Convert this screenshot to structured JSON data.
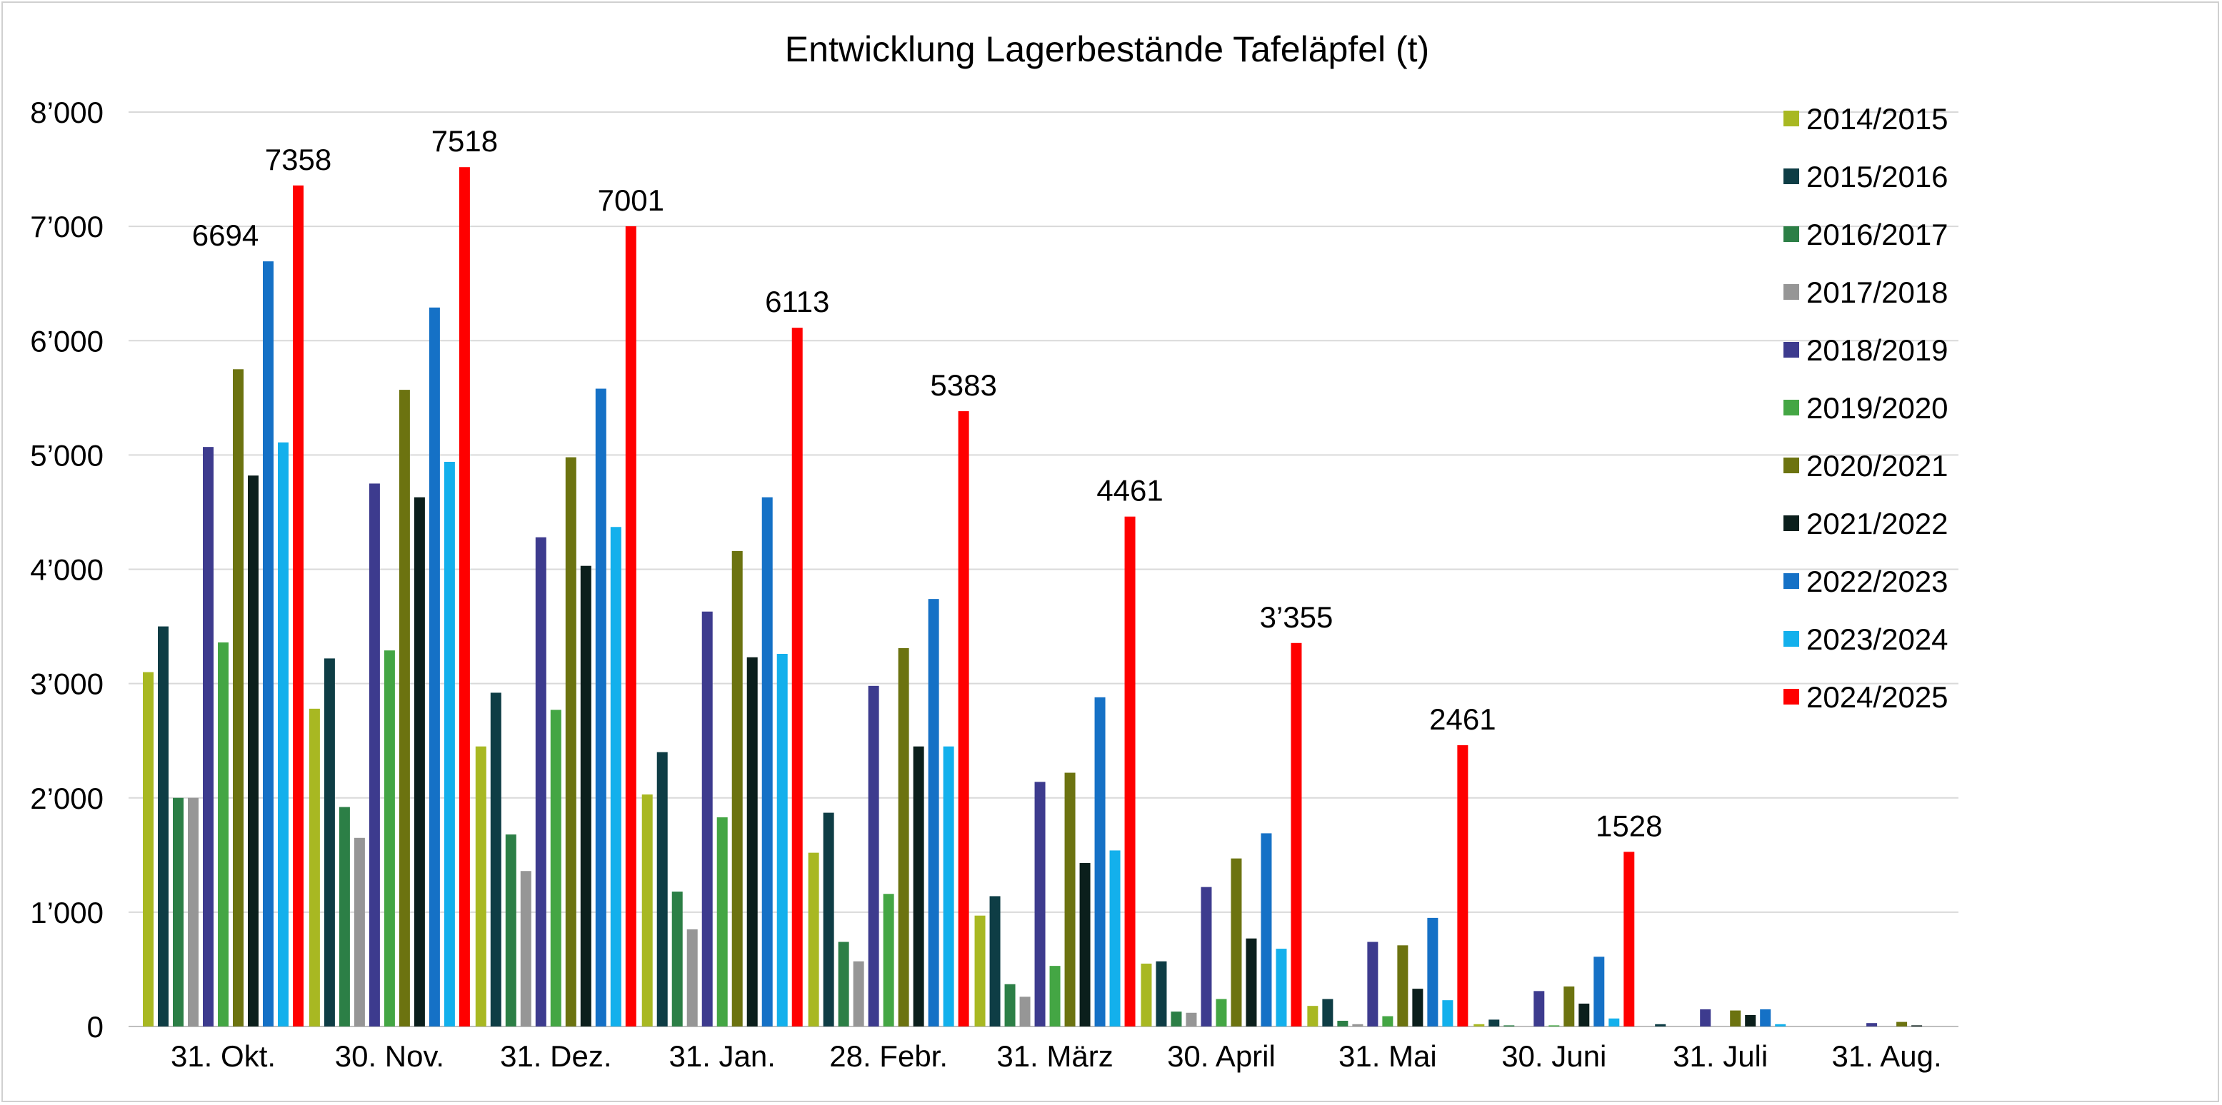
{
  "chart_data": {
    "type": "bar",
    "title": "Entwicklung Lagerbestände Tafeläpfel (t)",
    "xlabel": "",
    "ylabel": "",
    "ylim": [
      0,
      8000
    ],
    "y_ticks": [
      "0",
      "1’000",
      "2’000",
      "3’000",
      "4’000",
      "5’000",
      "6’000",
      "7’000",
      "8’000"
    ],
    "grid": true,
    "legend_position": "right",
    "categories": [
      "31. Okt.",
      "30. Nov.",
      "31. Dez.",
      "31. Jan.",
      "28. Febr.",
      "31. März",
      "30. April",
      "31. Mai",
      "30. Juni",
      "31. Juli",
      "31. Aug."
    ],
    "series": [
      {
        "name": "2014/2015",
        "color": "#a8b822",
        "values": [
          3100,
          2780,
          2450,
          2030,
          1520,
          970,
          550,
          180,
          20,
          0,
          0
        ]
      },
      {
        "name": "2015/2016",
        "color": "#0e3d45",
        "values": [
          3500,
          3220,
          2920,
          2400,
          1870,
          1140,
          570,
          240,
          60,
          20,
          0
        ]
      },
      {
        "name": "2016/2017",
        "color": "#2c7f46",
        "values": [
          2000,
          1920,
          1680,
          1180,
          740,
          370,
          130,
          50,
          10,
          0,
          0
        ]
      },
      {
        "name": "2017/2018",
        "color": "#969696",
        "values": [
          2000,
          1650,
          1360,
          850,
          570,
          260,
          120,
          20,
          0,
          0,
          0
        ]
      },
      {
        "name": "2018/2019",
        "color": "#3d3b8e",
        "values": [
          5070,
          4750,
          4280,
          3630,
          2980,
          2140,
          1220,
          740,
          310,
          150,
          30
        ]
      },
      {
        "name": "2019/2020",
        "color": "#44a644",
        "values": [
          3360,
          3290,
          2770,
          1830,
          1160,
          530,
          240,
          90,
          10,
          0,
          0
        ]
      },
      {
        "name": "2020/2021",
        "color": "#6c7310",
        "values": [
          5750,
          5570,
          4980,
          4160,
          3310,
          2220,
          1470,
          710,
          350,
          140,
          40
        ]
      },
      {
        "name": "2021/2022",
        "color": "#0b1f1c",
        "values": [
          4820,
          4630,
          4030,
          3230,
          2450,
          1430,
          770,
          330,
          200,
          100,
          10
        ]
      },
      {
        "name": "2022/2023",
        "color": "#1571c6",
        "values": [
          6694,
          6290,
          5580,
          4630,
          3740,
          2880,
          1690,
          950,
          610,
          150,
          0
        ]
      },
      {
        "name": "2023/2024",
        "color": "#13b0ec",
        "values": [
          5110,
          4940,
          4370,
          3260,
          2450,
          1540,
          680,
          230,
          70,
          20,
          0
        ]
      },
      {
        "name": "2024/2025",
        "color": "#ff0000",
        "values": [
          7358,
          7518,
          7001,
          6113,
          5383,
          4461,
          3355,
          2461,
          1528,
          null,
          null
        ]
      }
    ],
    "data_labels": [
      {
        "category": "31. Okt.",
        "series": "2022/2023",
        "text": "6694"
      },
      {
        "category": "31. Okt.",
        "series": "2024/2025",
        "text": "7358"
      },
      {
        "category": "30. Nov.",
        "series": "2024/2025",
        "text": "7518"
      },
      {
        "category": "31. Dez.",
        "series": "2024/2025",
        "text": "7001"
      },
      {
        "category": "31. Jan.",
        "series": "2024/2025",
        "text": "6113"
      },
      {
        "category": "28. Febr.",
        "series": "2024/2025",
        "text": "5383"
      },
      {
        "category": "31. März",
        "series": "2024/2025",
        "text": "4461"
      },
      {
        "category": "30. April",
        "series": "2024/2025",
        "text": "3’355"
      },
      {
        "category": "31. Mai",
        "series": "2024/2025",
        "text": "2461"
      },
      {
        "category": "30. Juni",
        "series": "2024/2025",
        "text": "1528"
      }
    ]
  }
}
